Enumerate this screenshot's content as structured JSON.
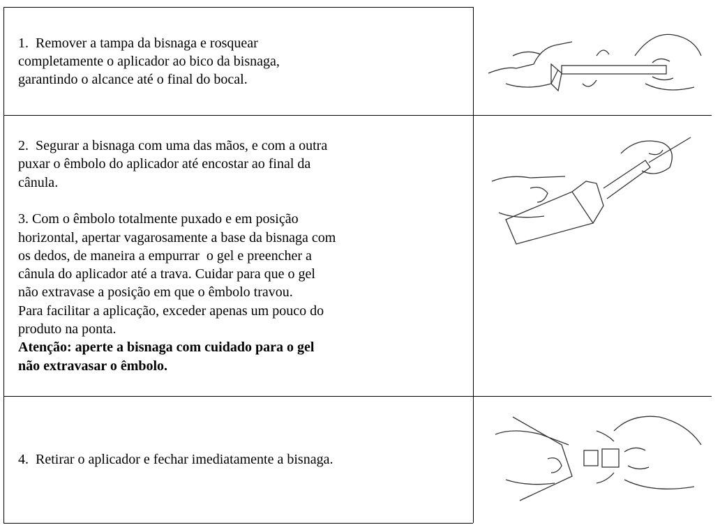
{
  "table": {
    "rows": [
      {
        "paragraphs": [
          [
            "1.  Remover a tampa da bisnaga e rosquear",
            "completamente o aplicador ao bico da bisnaga,",
            "garantindo o alcance até o final do bocal."
          ]
        ]
      },
      {
        "paragraphs": [
          [
            "2.  Segurar a bisnaga com uma das mãos, e com a outra",
            "puxar o êmbolo do aplicador até encostar ao final da",
            "cânula."
          ],
          [
            "3. Com o êmbolo totalmente puxado e em posição",
            "horizontal, apertar vagarosamente a base da bisnaga com",
            "os dedos, de maneira a empurrar  o gel e preencher a",
            "cânula do aplicador até a trava. Cuidar para que o gel",
            "não extravase a posição em que o êmbolo travou.",
            "Para facilitar a aplicação, exceder apenas um pouco do",
            "produto na ponta."
          ]
        ],
        "warning": [
          "Atenção: aperte a bisnaga com cuidado para o gel",
          "não extravasar o êmbolo."
        ]
      },
      {
        "paragraphs": [
          [
            "4.  Retirar o aplicador e fechar imediatamente a bisnaga."
          ]
        ]
      }
    ]
  }
}
